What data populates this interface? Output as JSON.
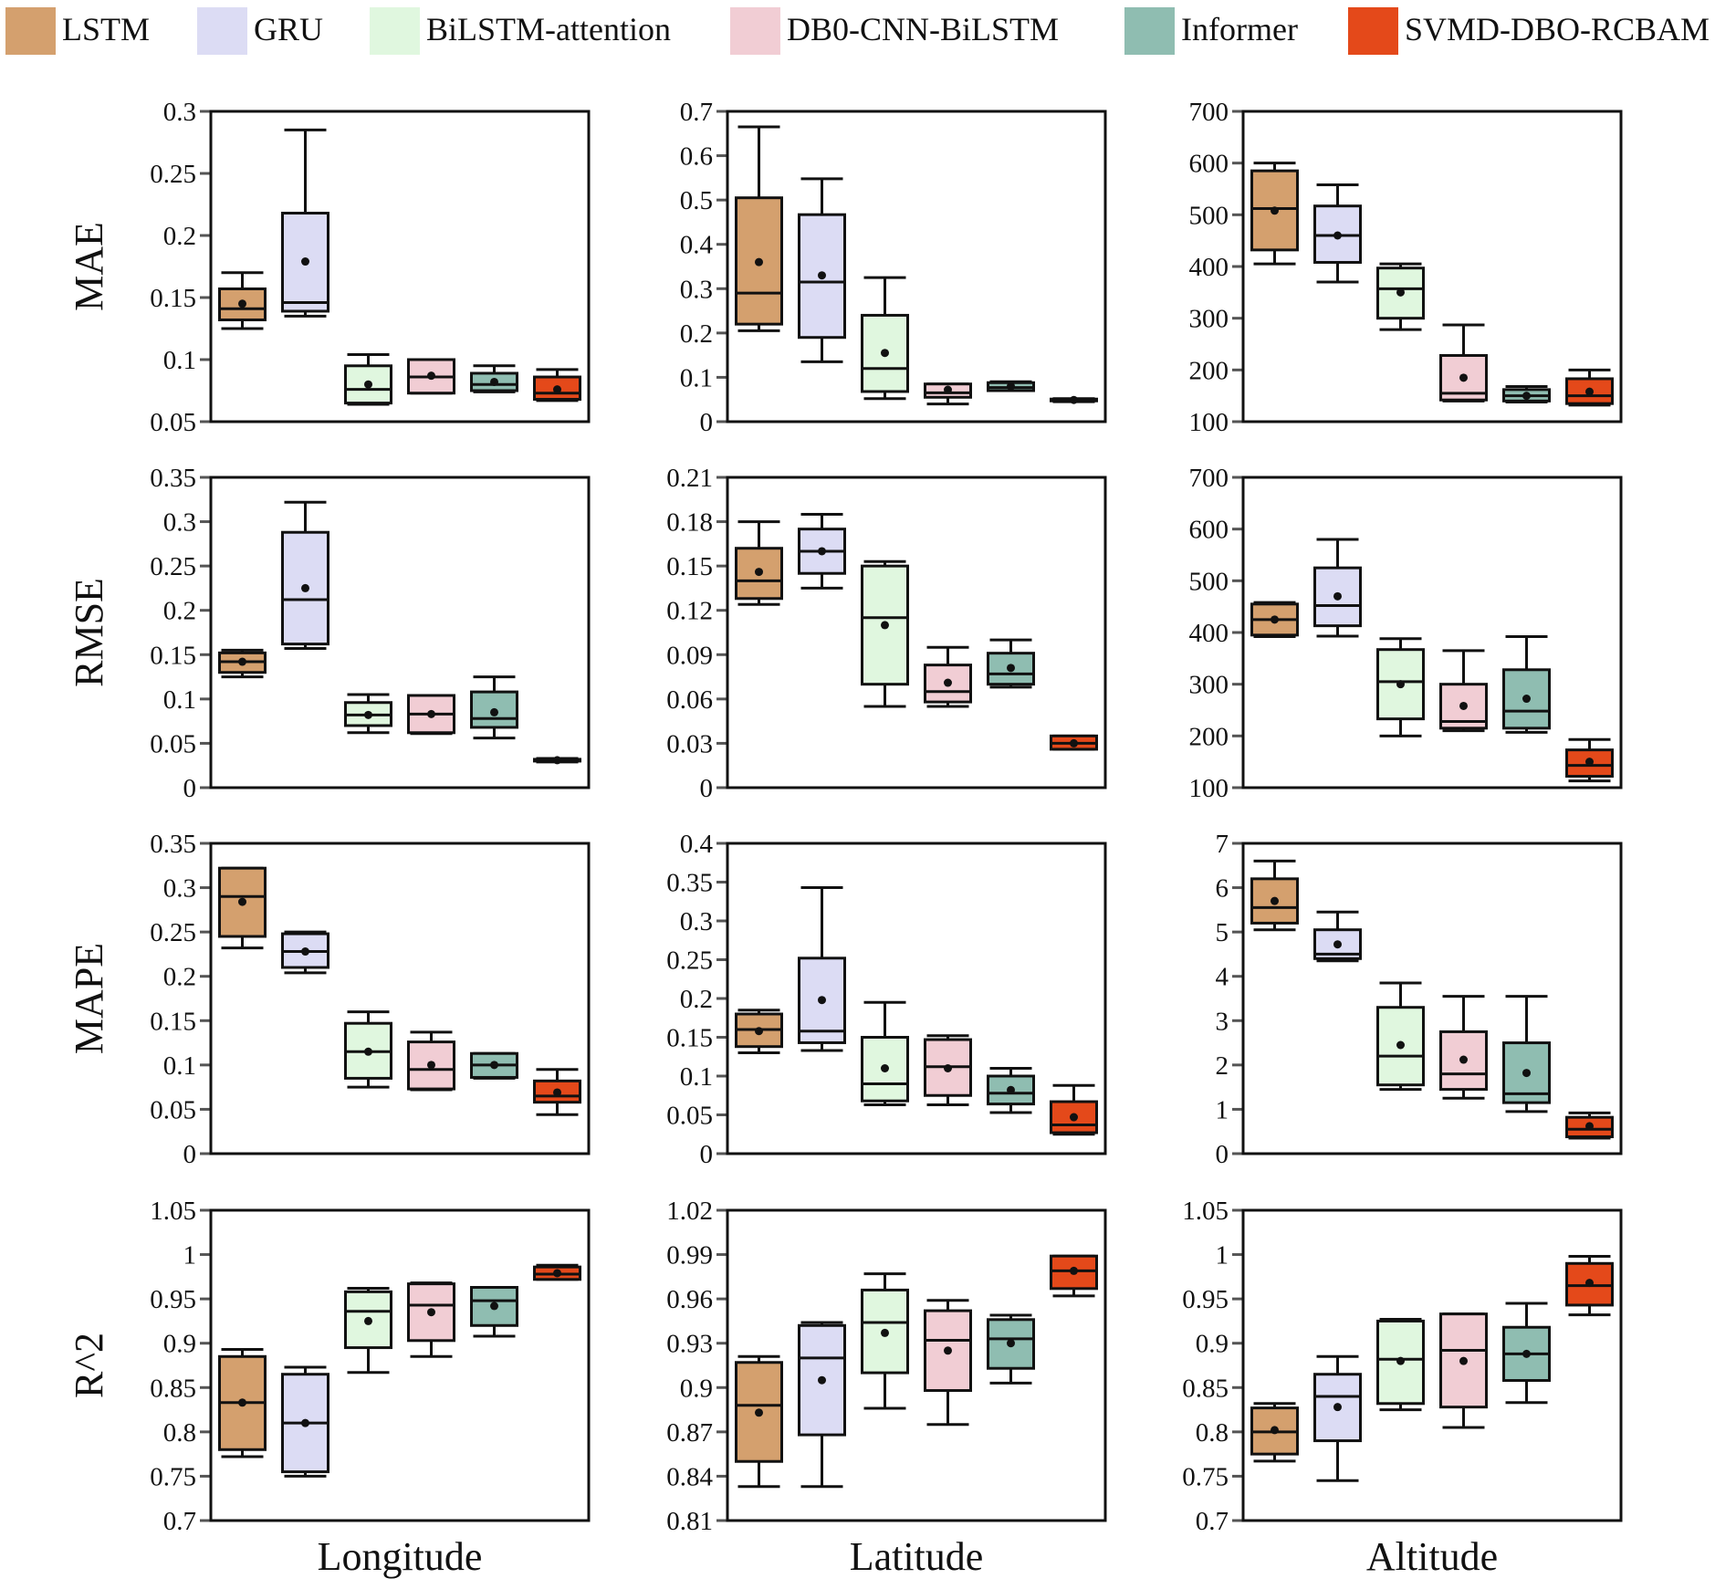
{
  "chart_data": {
    "type": "box",
    "legend": {
      "placement": "top",
      "entries": [
        {
          "name": "LSTM",
          "color": "#d4a06e"
        },
        {
          "name": "GRU",
          "color": "#dcdcf4"
        },
        {
          "name": "BiLSTM-attention",
          "color": "#e0f7df"
        },
        {
          "name": "DB0-CNN-BiLSTM",
          "color": "#f1cdd4"
        },
        {
          "name": "Informer",
          "color": "#8fbdb1"
        },
        {
          "name": "SVMD-DBO-RCBAM",
          "color": "#e4491a"
        }
      ]
    },
    "row_labels": [
      "MAE",
      "RMSE",
      "MAPE",
      "R^2"
    ],
    "col_labels": [
      "Longitude",
      "Latitude",
      "Altitude"
    ],
    "stat_order": [
      "whisker_low",
      "q1",
      "median",
      "q3",
      "whisker_high",
      "mean"
    ],
    "panels": [
      {
        "metric": "MAE",
        "dim": "Longitude",
        "ylim": [
          0.05,
          0.3
        ],
        "ticks": [
          "0.05",
          "0.1",
          "0.15",
          "0.2",
          "0.25",
          "0.3"
        ],
        "boxes": [
          [
            0.125,
            0.132,
            0.141,
            0.157,
            0.17,
            0.145
          ],
          [
            0.135,
            0.139,
            0.146,
            0.218,
            0.285,
            0.179
          ],
          [
            0.064,
            0.065,
            0.076,
            0.095,
            0.104,
            0.08
          ],
          [
            0.073,
            0.073,
            0.086,
            0.1,
            0.1,
            0.087
          ],
          [
            0.074,
            0.075,
            0.08,
            0.089,
            0.095,
            0.082
          ],
          [
            0.067,
            0.068,
            0.073,
            0.086,
            0.092,
            0.076
          ]
        ]
      },
      {
        "metric": "MAE",
        "dim": "Latitude",
        "ylim": [
          0,
          0.7
        ],
        "ticks": [
          "0",
          "0.1",
          "0.2",
          "0.3",
          "0.4",
          "0.5",
          "0.6",
          "0.7"
        ],
        "boxes": [
          [
            0.205,
            0.22,
            0.29,
            0.505,
            0.665,
            0.36
          ],
          [
            0.135,
            0.19,
            0.315,
            0.467,
            0.548,
            0.33
          ],
          [
            0.052,
            0.068,
            0.12,
            0.24,
            0.325,
            0.155
          ],
          [
            0.04,
            0.055,
            0.065,
            0.085,
            0.085,
            0.072
          ],
          [
            0.07,
            0.07,
            0.077,
            0.088,
            0.09,
            0.08
          ],
          [
            0.045,
            0.047,
            0.049,
            0.051,
            0.052,
            0.049
          ]
        ]
      },
      {
        "metric": "MAE",
        "dim": "Altitude",
        "ylim": [
          100,
          700
        ],
        "ticks": [
          "100",
          "200",
          "300",
          "400",
          "500",
          "600",
          "700"
        ],
        "boxes": [
          [
            405,
            432,
            512,
            585,
            600,
            508
          ],
          [
            370,
            408,
            460,
            517,
            558,
            460
          ],
          [
            278,
            300,
            357,
            397,
            405,
            350
          ],
          [
            140,
            142,
            155,
            228,
            287,
            185
          ],
          [
            138,
            140,
            150,
            162,
            168,
            150
          ],
          [
            132,
            135,
            150,
            183,
            200,
            158
          ]
        ]
      },
      {
        "metric": "RMSE",
        "dim": "Longitude",
        "ylim": [
          0,
          0.35
        ],
        "ticks": [
          "0",
          "0.05",
          "0.1",
          "0.15",
          "0.2",
          "0.25",
          "0.3",
          "0.35"
        ],
        "boxes": [
          [
            0.125,
            0.13,
            0.142,
            0.152,
            0.155,
            0.142
          ],
          [
            0.157,
            0.162,
            0.212,
            0.288,
            0.322,
            0.225
          ],
          [
            0.062,
            0.07,
            0.082,
            0.096,
            0.105,
            0.082
          ],
          [
            0.061,
            0.062,
            0.083,
            0.104,
            0.104,
            0.083
          ],
          [
            0.056,
            0.068,
            0.078,
            0.108,
            0.125,
            0.085
          ],
          [
            0.029,
            0.03,
            0.031,
            0.032,
            0.033,
            0.031
          ]
        ]
      },
      {
        "metric": "RMSE",
        "dim": "Latitude",
        "ylim": [
          0,
          0.21
        ],
        "ticks": [
          "0",
          "0.03",
          "0.06",
          "0.09",
          "0.12",
          "0.15",
          "0.18",
          "0.21"
        ],
        "boxes": [
          [
            0.124,
            0.128,
            0.14,
            0.162,
            0.18,
            0.146
          ],
          [
            0.135,
            0.145,
            0.16,
            0.175,
            0.185,
            0.16
          ],
          [
            0.055,
            0.07,
            0.115,
            0.15,
            0.153,
            0.11
          ],
          [
            0.055,
            0.058,
            0.065,
            0.083,
            0.095,
            0.071
          ],
          [
            0.068,
            0.07,
            0.077,
            0.091,
            0.1,
            0.081
          ],
          [
            0.026,
            0.026,
            0.03,
            0.035,
            0.035,
            0.03
          ]
        ]
      },
      {
        "metric": "RMSE",
        "dim": "Altitude",
        "ylim": [
          100,
          700
        ],
        "ticks": [
          "100",
          "200",
          "300",
          "400",
          "500",
          "600",
          "700"
        ],
        "boxes": [
          [
            392,
            395,
            425,
            455,
            458,
            425
          ],
          [
            393,
            413,
            452,
            525,
            580,
            470
          ],
          [
            200,
            233,
            305,
            367,
            388,
            300
          ],
          [
            210,
            215,
            228,
            300,
            365,
            258
          ],
          [
            207,
            215,
            248,
            328,
            392,
            272
          ],
          [
            113,
            122,
            143,
            173,
            193,
            150
          ]
        ]
      },
      {
        "metric": "MAPE",
        "dim": "Longitude",
        "ylim": [
          0,
          0.35
        ],
        "ticks": [
          "0",
          "0.05",
          "0.1",
          "0.15",
          "0.2",
          "0.25",
          "0.3",
          "0.35"
        ],
        "boxes": [
          [
            0.232,
            0.245,
            0.29,
            0.322,
            0.322,
            0.284
          ],
          [
            0.204,
            0.21,
            0.228,
            0.248,
            0.25,
            0.228
          ],
          [
            0.075,
            0.085,
            0.115,
            0.147,
            0.16,
            0.115
          ],
          [
            0.072,
            0.073,
            0.095,
            0.126,
            0.137,
            0.1
          ],
          [
            0.085,
            0.086,
            0.1,
            0.113,
            0.113,
            0.1
          ],
          [
            0.044,
            0.058,
            0.065,
            0.082,
            0.095,
            0.069
          ]
        ]
      },
      {
        "metric": "MAPE",
        "dim": "Latitude",
        "ylim": [
          0,
          0.4
        ],
        "ticks": [
          "0",
          "0.05",
          "0.1",
          "0.15",
          "0.2",
          "0.25",
          "0.3",
          "0.35",
          "0.4"
        ],
        "boxes": [
          [
            0.13,
            0.138,
            0.16,
            0.18,
            0.185,
            0.158
          ],
          [
            0.133,
            0.143,
            0.158,
            0.252,
            0.343,
            0.198
          ],
          [
            0.063,
            0.068,
            0.09,
            0.15,
            0.195,
            0.11
          ],
          [
            0.063,
            0.075,
            0.112,
            0.147,
            0.152,
            0.11
          ],
          [
            0.053,
            0.064,
            0.078,
            0.1,
            0.11,
            0.082
          ],
          [
            0.025,
            0.027,
            0.037,
            0.067,
            0.088,
            0.047
          ]
        ]
      },
      {
        "metric": "MAPE",
        "dim": "Altitude",
        "ylim": [
          0,
          7
        ],
        "ticks": [
          "0",
          "1",
          "2",
          "3",
          "4",
          "5",
          "6",
          "7"
        ],
        "boxes": [
          [
            5.05,
            5.2,
            5.55,
            6.2,
            6.6,
            5.7
          ],
          [
            4.35,
            4.4,
            4.5,
            5.05,
            5.45,
            4.72
          ],
          [
            1.45,
            1.55,
            2.2,
            3.3,
            3.85,
            2.45
          ],
          [
            1.25,
            1.45,
            1.8,
            2.75,
            3.55,
            2.12
          ],
          [
            0.95,
            1.15,
            1.35,
            2.5,
            3.55,
            1.82
          ],
          [
            0.35,
            0.38,
            0.55,
            0.82,
            0.92,
            0.62
          ]
        ]
      },
      {
        "metric": "R^2",
        "dim": "Longitude",
        "ylim": [
          0.7,
          1.05
        ],
        "ticks": [
          "0.7",
          "0.75",
          "0.8",
          "0.85",
          "0.9",
          "0.95",
          "1",
          "1.05"
        ],
        "boxes": [
          [
            0.772,
            0.78,
            0.833,
            0.885,
            0.893,
            0.833
          ],
          [
            0.75,
            0.755,
            0.81,
            0.865,
            0.873,
            0.81
          ],
          [
            0.867,
            0.895,
            0.936,
            0.958,
            0.962,
            0.925
          ],
          [
            0.885,
            0.903,
            0.943,
            0.967,
            0.968,
            0.935
          ],
          [
            0.908,
            0.92,
            0.948,
            0.963,
            0.963,
            0.942
          ],
          [
            0.972,
            0.972,
            0.978,
            0.986,
            0.988,
            0.979
          ]
        ]
      },
      {
        "metric": "R^2",
        "dim": "Latitude",
        "ylim": [
          0.81,
          1.02
        ],
        "ticks": [
          "0.81",
          "0.84",
          "0.87",
          "0.9",
          "0.93",
          "0.96",
          "0.99",
          "1.02"
        ],
        "boxes": [
          [
            0.833,
            0.85,
            0.888,
            0.917,
            0.921,
            0.883
          ],
          [
            0.833,
            0.868,
            0.92,
            0.942,
            0.944,
            0.905
          ],
          [
            0.886,
            0.91,
            0.944,
            0.966,
            0.977,
            0.937
          ],
          [
            0.875,
            0.898,
            0.932,
            0.952,
            0.959,
            0.925
          ],
          [
            0.903,
            0.913,
            0.933,
            0.946,
            0.949,
            0.93
          ],
          [
            0.962,
            0.967,
            0.979,
            0.989,
            0.989,
            0.979
          ]
        ]
      },
      {
        "metric": "R^2",
        "dim": "Altitude",
        "ylim": [
          0.7,
          1.05
        ],
        "ticks": [
          "0.7",
          "0.75",
          "0.8",
          "0.85",
          "0.9",
          "0.95",
          "1",
          "1.05"
        ],
        "boxes": [
          [
            0.767,
            0.775,
            0.8,
            0.827,
            0.832,
            0.802
          ],
          [
            0.745,
            0.79,
            0.84,
            0.865,
            0.885,
            0.828
          ],
          [
            0.825,
            0.832,
            0.882,
            0.925,
            0.927,
            0.88
          ],
          [
            0.805,
            0.828,
            0.892,
            0.933,
            0.933,
            0.88
          ],
          [
            0.833,
            0.858,
            0.888,
            0.918,
            0.945,
            0.888
          ],
          [
            0.932,
            0.943,
            0.965,
            0.99,
            0.998,
            0.968
          ]
        ]
      }
    ]
  }
}
